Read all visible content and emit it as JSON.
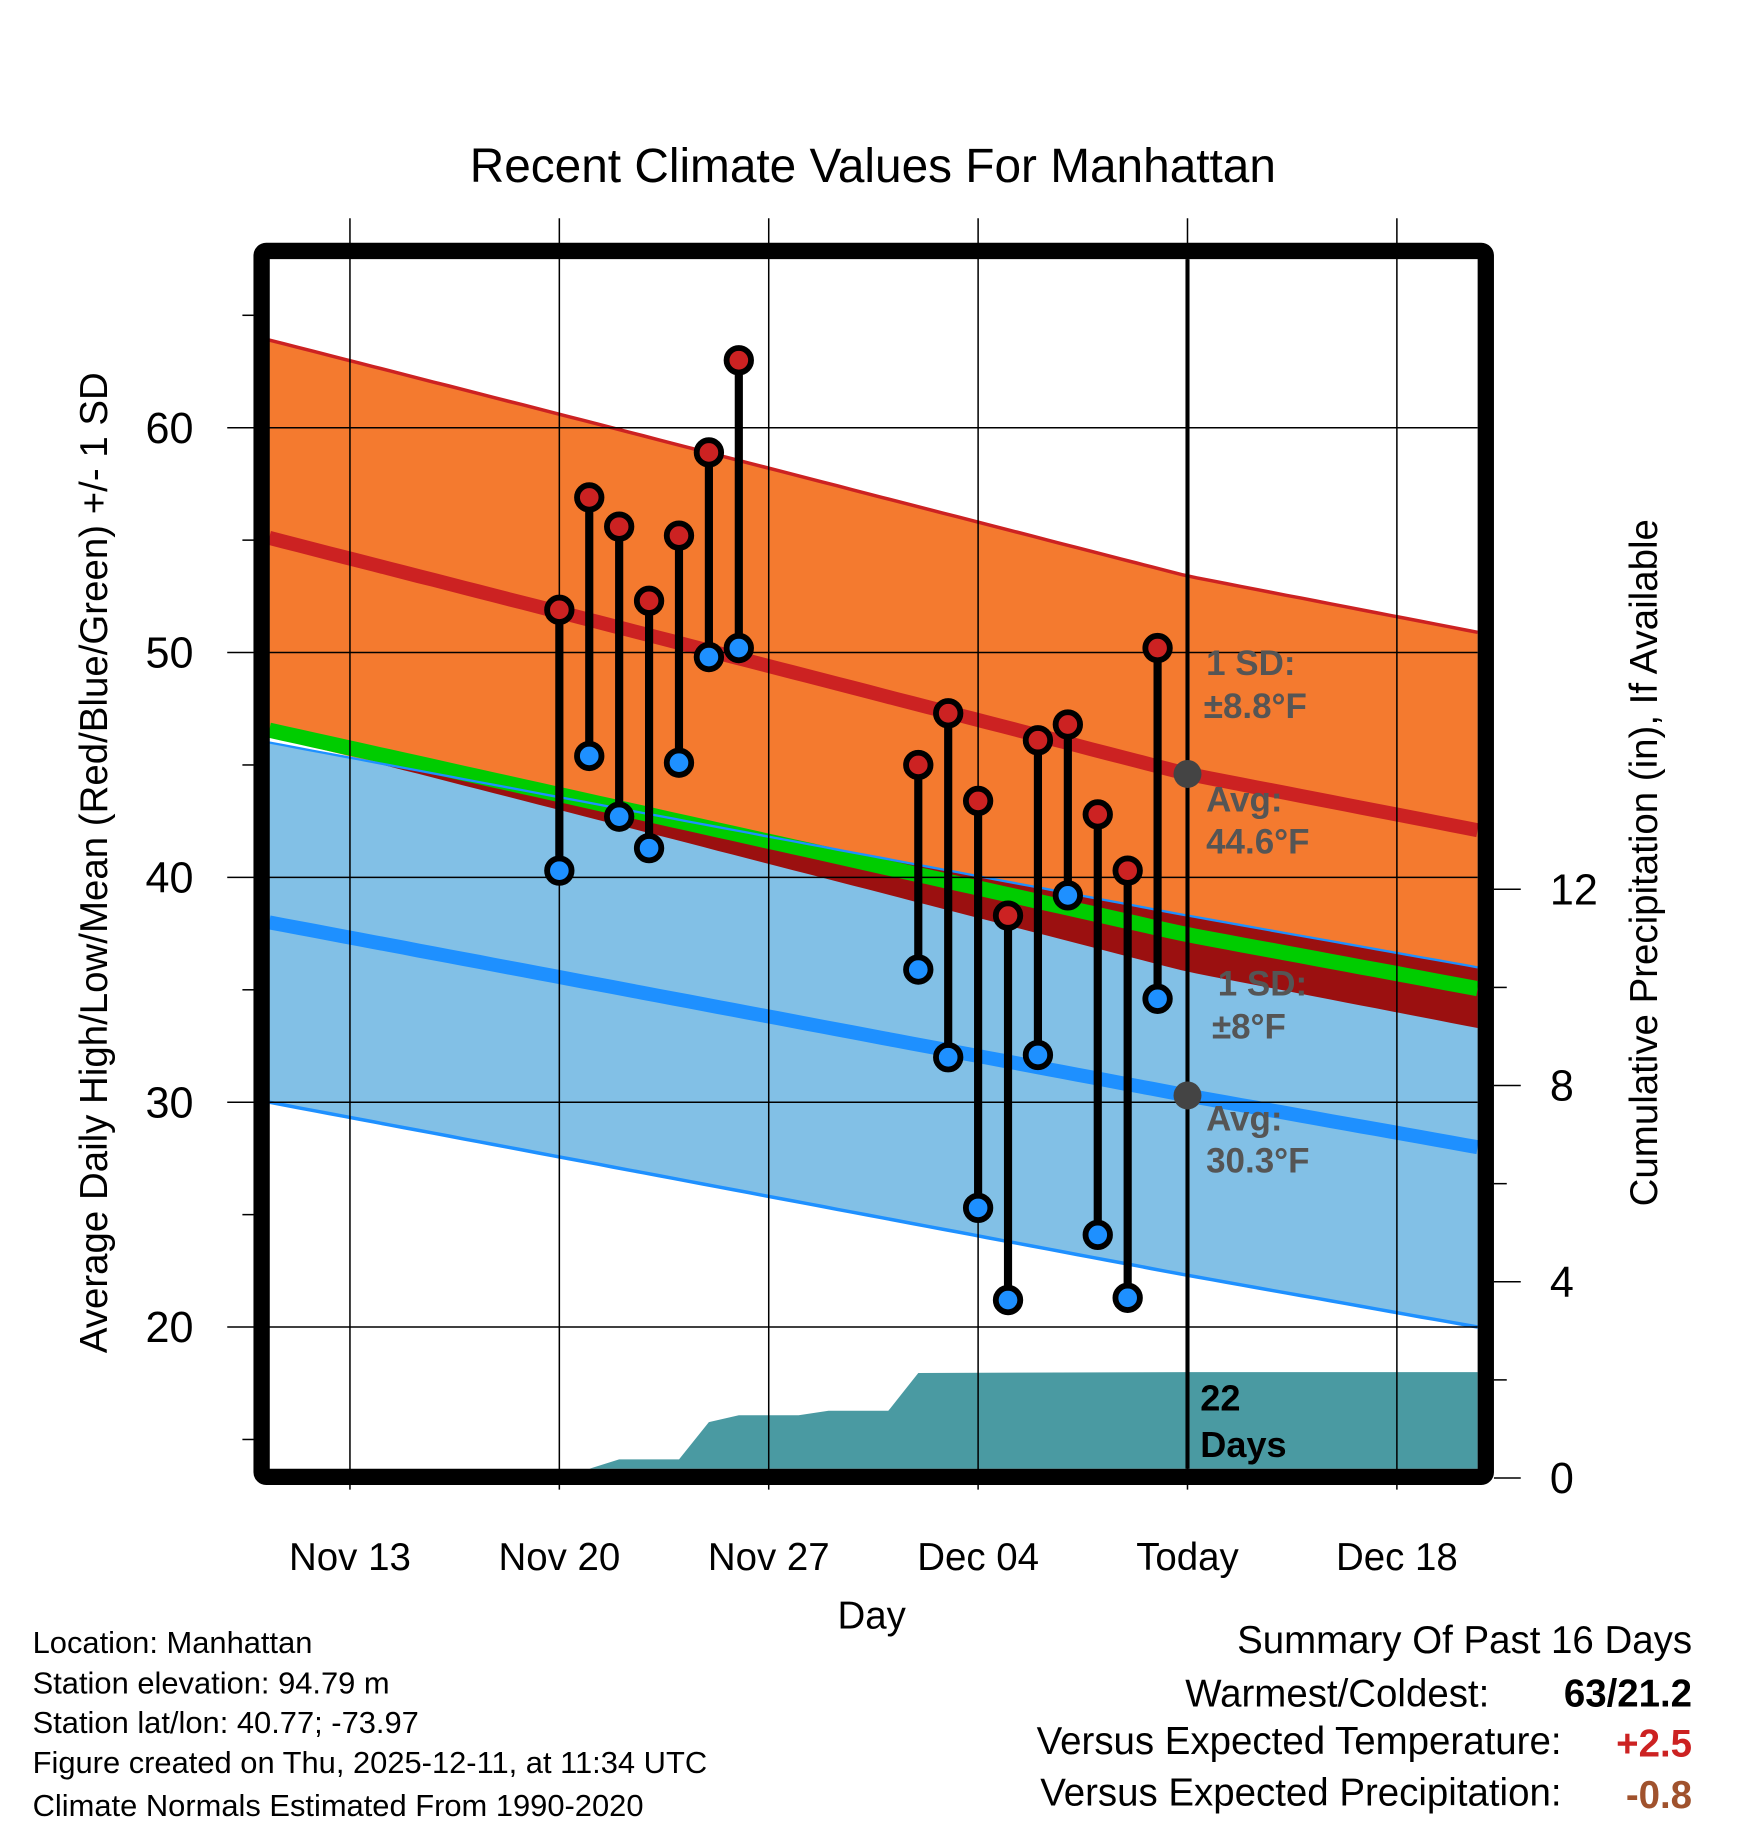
{
  "chart_data": {
    "type": "line",
    "title": "Recent Climate Values For Manhattan",
    "xlabel": "Day",
    "ylabel": "Average Daily High/Low/Mean (Red/Blue/Green) +/- 1 SD",
    "y2label": "Cumulative Precipitation (in), If Available",
    "ylim": [
      13.7,
      67.5
    ],
    "y2lim": [
      0,
      24.6
    ],
    "x_unit": "days since Nov 13",
    "xlim": [
      -2.7,
      37.7
    ],
    "grid": true,
    "x_ticks": [
      {
        "day": 0,
        "label": "Nov 13"
      },
      {
        "day": 7,
        "label": "Nov 20"
      },
      {
        "day": 14,
        "label": "Nov 27"
      },
      {
        "day": 21,
        "label": "Dec 04"
      },
      {
        "day": 28,
        "label": "Today"
      },
      {
        "day": 35,
        "label": "Dec 18"
      }
    ],
    "y_ticks": [
      20,
      30,
      40,
      50,
      60
    ],
    "y2_ticks": [
      0,
      4,
      8,
      12
    ],
    "today_day": 28,
    "normals": {
      "high_avg": [
        [
          -2.7,
          55.1
        ],
        [
          7,
          51.8
        ],
        [
          28,
          44.6
        ],
        [
          37.7,
          42.1
        ]
      ],
      "low_avg": [
        [
          -2.7,
          38.0
        ],
        [
          28,
          30.3
        ],
        [
          37.7,
          28.0
        ]
      ],
      "high_sd": 8.8,
      "low_sd": 8.0
    },
    "observations": [
      {
        "day": 7,
        "high": 51.9,
        "low": 40.3
      },
      {
        "day": 8,
        "high": 56.9,
        "low": 45.4
      },
      {
        "day": 9,
        "high": 55.6,
        "low": 42.7
      },
      {
        "day": 10,
        "high": 52.3,
        "low": 41.3
      },
      {
        "day": 11,
        "high": 55.2,
        "low": 45.1
      },
      {
        "day": 12,
        "high": 58.9,
        "low": 49.8
      },
      {
        "day": 13,
        "high": 63.0,
        "low": 50.2
      },
      {
        "day": 19,
        "high": 45.0,
        "low": 35.9
      },
      {
        "day": 20,
        "high": 47.3,
        "low": 32.0
      },
      {
        "day": 21,
        "high": 43.4,
        "low": 25.3
      },
      {
        "day": 22,
        "high": 38.3,
        "low": 21.2
      },
      {
        "day": 23,
        "high": 46.1,
        "low": 32.1
      },
      {
        "day": 24,
        "high": 46.8,
        "low": 39.2
      },
      {
        "day": 25,
        "high": 42.8,
        "low": 24.1
      },
      {
        "day": 26,
        "high": 40.3,
        "low": 21.3
      },
      {
        "day": 27,
        "high": 50.2,
        "low": 34.6
      }
    ],
    "precip_cumulative": [
      [
        -2.7,
        0
      ],
      [
        8,
        0
      ],
      [
        9,
        0.38
      ],
      [
        11,
        0.38
      ],
      [
        12,
        1.14
      ],
      [
        13,
        1.28
      ],
      [
        15,
        1.28
      ],
      [
        16,
        1.37
      ],
      [
        18,
        1.37
      ],
      [
        19,
        2.14
      ],
      [
        28,
        2.16
      ],
      [
        37.7,
        2.16
      ]
    ],
    "annotations": {
      "high_sd_label": "1 SD:",
      "high_sd_value": "±8.8°F",
      "high_avg_label": "Avg:",
      "high_avg_value": "44.6°F",
      "low_sd_label": "1 SD:",
      "low_sd_value": "±8°F",
      "low_avg_label": "Avg:",
      "low_avg_value": "30.3°F",
      "days_count": "22",
      "days_label": "Days"
    },
    "colors": {
      "high_band": "#f47a2f",
      "high_line": "#cc2222",
      "overlap": "#9b1010",
      "mean_line": "#00cc00",
      "low_band": "#82c0e6",
      "low_line": "#1e90ff",
      "precip": "#4a9aa2",
      "avg_marker": "#444444"
    }
  },
  "info": {
    "location": "Location: Manhattan",
    "elevation": "Station elevation: 94.79 m",
    "latlon": "Station lat/lon: 40.77; -73.97",
    "created": "Figure created on Thu, 2025-12-11, at 11:34 UTC",
    "normals": "Climate Normals Estimated From 1990-2020"
  },
  "summary": {
    "title": "Summary Of Past 16 Days",
    "warm_cold_label": "Warmest/Coldest:",
    "warm_cold_value": "63/21.2",
    "temp_label": "Versus Expected Temperature:",
    "temp_value": "+2.5",
    "temp_color": "#cc2222",
    "precip_label": "Versus Expected Precipitation:",
    "precip_value": "-0.8",
    "precip_color": "#a0522d"
  }
}
